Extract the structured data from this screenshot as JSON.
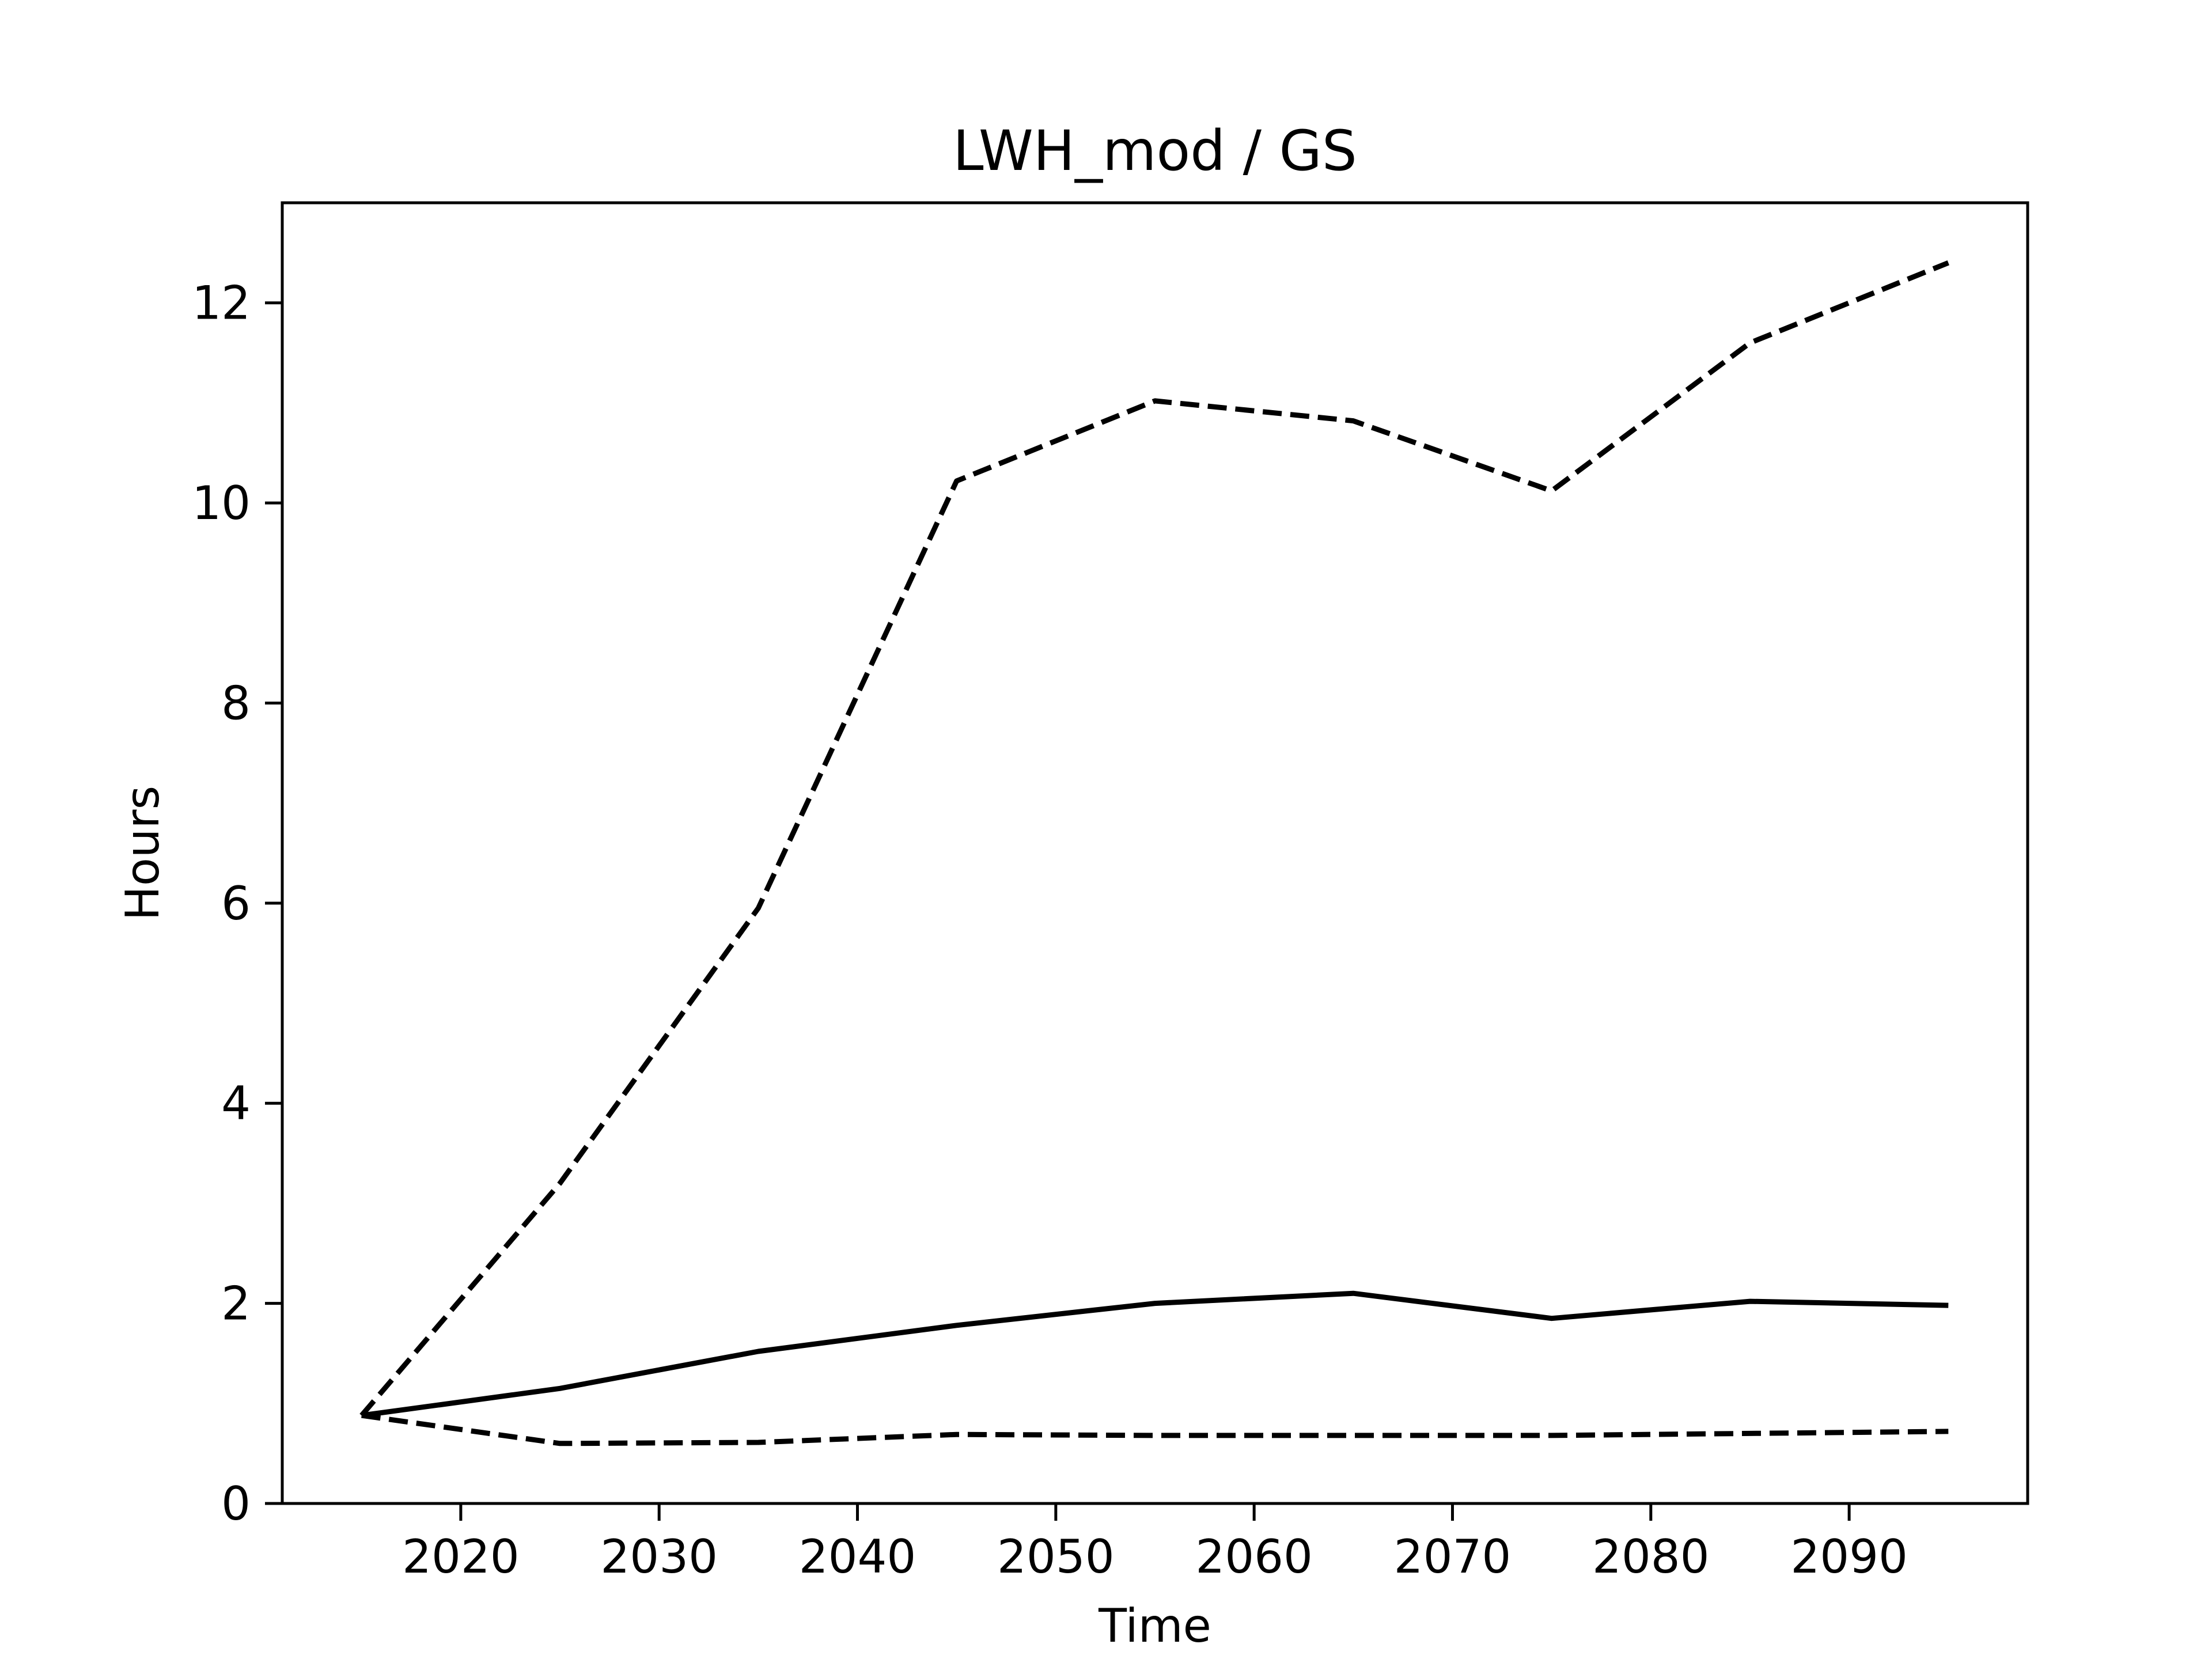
{
  "chart_data": {
    "type": "line",
    "title": "LWH_mod / GS",
    "xlabel": "Time",
    "ylabel": "Hours",
    "xlim": [
      2011,
      2099
    ],
    "ylim": [
      0,
      13
    ],
    "xticks": [
      2020,
      2030,
      2040,
      2050,
      2060,
      2070,
      2080,
      2090
    ],
    "yticks": [
      0,
      2,
      4,
      6,
      8,
      10,
      12
    ],
    "grid": false,
    "legend": "none",
    "x": [
      2015,
      2025,
      2035,
      2045,
      2055,
      2065,
      2075,
      2085,
      2095
    ],
    "series": [
      {
        "style": "dashed",
        "color": "#000000",
        "values": [
          0.88,
          3.2,
          5.95,
          10.22,
          11.02,
          10.82,
          10.12,
          11.6,
          12.4
        ]
      },
      {
        "style": "solid",
        "color": "#000000",
        "values": [
          0.88,
          1.15,
          1.52,
          1.78,
          2.0,
          2.1,
          1.85,
          2.02,
          1.98
        ]
      },
      {
        "style": "dashed",
        "color": "#000000",
        "values": [
          0.88,
          0.6,
          0.61,
          0.69,
          0.68,
          0.68,
          0.68,
          0.7,
          0.72
        ]
      }
    ]
  }
}
